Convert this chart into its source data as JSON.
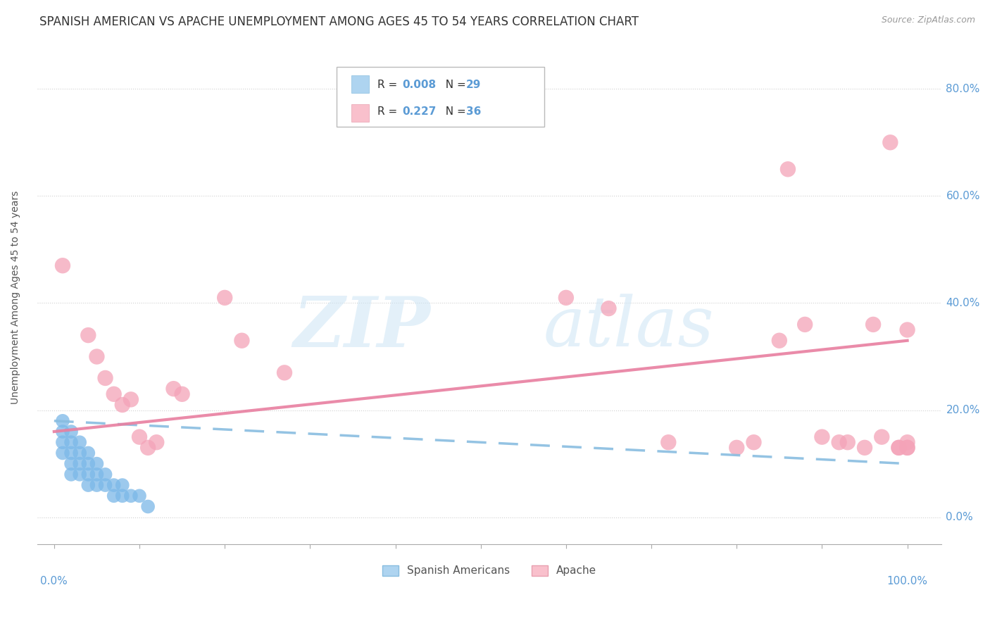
{
  "title": "SPANISH AMERICAN VS APACHE UNEMPLOYMENT AMONG AGES 45 TO 54 YEARS CORRELATION CHART",
  "source": "Source: ZipAtlas.com",
  "ylabel": "Unemployment Among Ages 45 to 54 years",
  "ytick_labels": [
    "0.0%",
    "20.0%",
    "40.0%",
    "60.0%",
    "80.0%"
  ],
  "ytick_values": [
    0,
    20,
    40,
    60,
    80
  ],
  "legend_label_spanish": "Spanish Americans",
  "legend_label_apache": "Apache",
  "spanish_color": "#7bb8e8",
  "apache_color": "#f4a3b8",
  "sa_x": [
    1,
    1,
    1,
    1,
    2,
    2,
    2,
    2,
    2,
    3,
    3,
    3,
    3,
    4,
    4,
    4,
    4,
    5,
    5,
    5,
    6,
    6,
    7,
    7,
    8,
    8,
    9,
    10,
    11
  ],
  "sa_y": [
    18,
    16,
    14,
    12,
    16,
    14,
    12,
    10,
    8,
    14,
    12,
    10,
    8,
    12,
    10,
    8,
    6,
    10,
    8,
    6,
    8,
    6,
    6,
    4,
    6,
    4,
    4,
    4,
    2
  ],
  "ap_x": [
    1,
    4,
    5,
    6,
    7,
    8,
    9,
    10,
    11,
    12,
    14,
    15,
    20,
    22,
    27,
    60,
    65,
    72,
    80,
    82,
    85,
    86,
    88,
    90,
    92,
    93,
    95,
    96,
    97,
    98,
    99,
    99,
    100,
    100,
    100,
    100
  ],
  "ap_y": [
    47,
    34,
    30,
    26,
    23,
    21,
    22,
    15,
    13,
    14,
    24,
    23,
    41,
    33,
    27,
    41,
    39,
    14,
    13,
    14,
    33,
    65,
    36,
    15,
    14,
    14,
    13,
    36,
    15,
    70,
    13,
    13,
    35,
    14,
    13,
    13
  ],
  "blue_reg": [
    0,
    18,
    100,
    10
  ],
  "pink_reg": [
    0,
    16,
    100,
    33
  ],
  "xlim": [
    -2,
    104
  ],
  "ylim": [
    -5,
    87
  ],
  "watermark_zip": "ZIP",
  "watermark_atlas": "atlas",
  "background_color": "#ffffff",
  "title_fontsize": 12,
  "tick_color": "#5b9bd5",
  "tick_fontsize": 11,
  "grid_color": "#d0d0d0",
  "legend_r_color": "#5b9bd5",
  "legend_n_color": "#333333"
}
